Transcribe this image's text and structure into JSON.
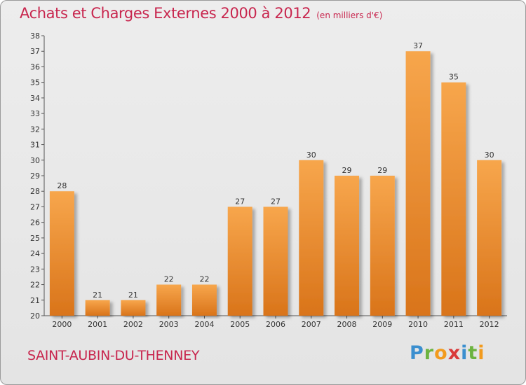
{
  "title": "Achats et Charges Externes 2000 à 2012",
  "subtitle": "(en milliers d'€)",
  "commune": "SAINT-AUBIN-DU-THENNEY",
  "logo": {
    "letters": [
      {
        "ch": "P",
        "color": "#3b8fcf"
      },
      {
        "ch": "r",
        "color": "#6cb33f"
      },
      {
        "ch": "o",
        "color": "#f29b1e"
      },
      {
        "ch": "x",
        "color": "#d93a3a"
      },
      {
        "ch": "i",
        "color": "#3b8fcf"
      },
      {
        "ch": "t",
        "color": "#6cb33f"
      },
      {
        "ch": "i",
        "color": "#f29b1e"
      }
    ]
  },
  "colors": {
    "accent": "#c8264e",
    "bar_light": "#f7a64c",
    "bar_dark": "#d9741a"
  },
  "chart_data": {
    "type": "bar",
    "categories": [
      "2000",
      "2001",
      "2002",
      "2003",
      "2004",
      "2005",
      "2006",
      "2007",
      "2008",
      "2009",
      "2010",
      "2011",
      "2012"
    ],
    "values": [
      28,
      21,
      21,
      22,
      22,
      27,
      27,
      30,
      29,
      29,
      37,
      35,
      30
    ],
    "ylim": [
      20,
      38
    ],
    "yticks": [
      20,
      21,
      22,
      23,
      24,
      25,
      26,
      27,
      28,
      29,
      30,
      31,
      32,
      33,
      34,
      35,
      36,
      37,
      38
    ],
    "grid": false,
    "legend": "none"
  }
}
